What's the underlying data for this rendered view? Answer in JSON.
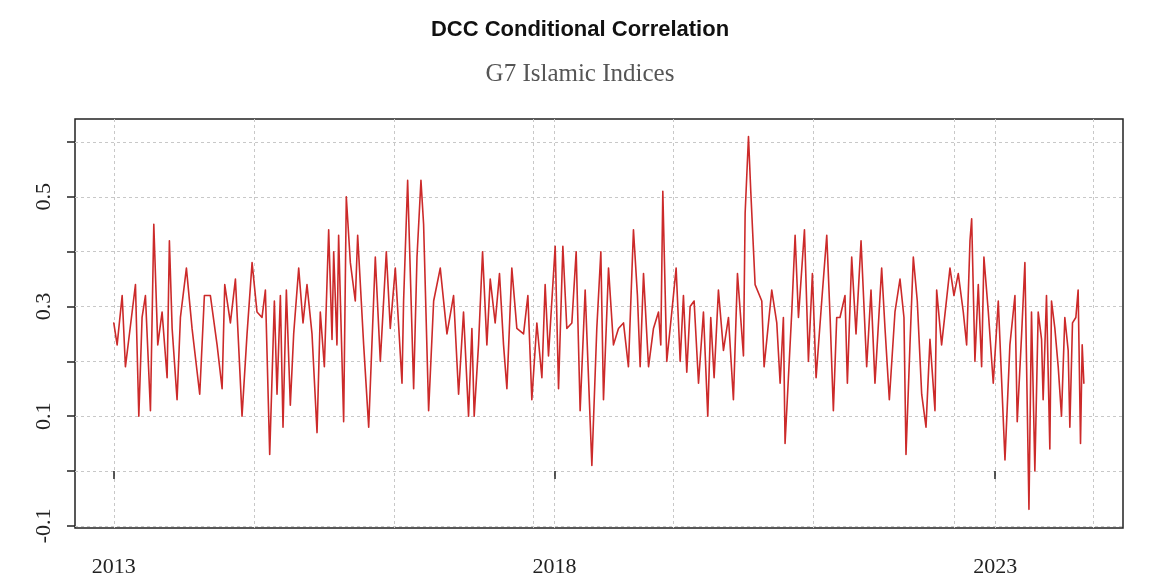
{
  "chart_data": {
    "type": "line",
    "title": "DCC Conditional Correlation",
    "subtitle": "G7 Islamic Indices",
    "x": [
      2013.0,
      2013.038,
      2013.095,
      2013.132,
      2013.208,
      2013.246,
      2013.284,
      2013.321,
      2013.359,
      2013.416,
      2013.454,
      2013.499,
      2013.548,
      2013.605,
      2013.631,
      2013.662,
      2013.718,
      2013.756,
      2013.824,
      2013.888,
      2013.975,
      2014.028,
      2014.096,
      2014.172,
      2014.229,
      2014.259,
      2014.323,
      2014.38,
      2014.455,
      2014.512,
      2014.569,
      2014.625,
      2014.682,
      2014.72,
      2014.769,
      2014.822,
      2014.852,
      2014.89,
      2014.92,
      2014.958,
      2015.003,
      2015.041,
      2015.098,
      2015.147,
      2015.192,
      2015.249,
      2015.306,
      2015.343,
      2015.389,
      2015.438,
      2015.476,
      2015.495,
      2015.532,
      2015.551,
      2015.608,
      2015.638,
      2015.684,
      2015.74,
      2015.767,
      2015.835,
      2015.892,
      2015.967,
      2016.024,
      2016.092,
      2016.137,
      2016.194,
      2016.27,
      2016.288,
      2016.334,
      2016.402,
      2016.44,
      2016.485,
      2016.515,
      2016.572,
      2016.629,
      2016.704,
      2016.78,
      2016.855,
      2016.912,
      2016.968,
      2017.025,
      2017.063,
      2017.089,
      2017.138,
      2017.184,
      2017.233,
      2017.271,
      2017.327,
      2017.376,
      2017.422,
      2017.46,
      2017.516,
      2017.573,
      2017.649,
      2017.698,
      2017.743,
      2017.8,
      2017.857,
      2017.894,
      2017.932,
      2018.008,
      2018.046,
      2018.095,
      2018.14,
      2018.197,
      2018.246,
      2018.291,
      2018.348,
      2018.405,
      2018.424,
      2018.48,
      2018.526,
      2018.556,
      2018.613,
      2018.669,
      2018.726,
      2018.783,
      2018.839,
      2018.896,
      2018.941,
      2018.972,
      2019.01,
      2019.067,
      2019.123,
      2019.18,
      2019.206,
      2019.229,
      2019.274,
      2019.331,
      2019.38,
      2019.426,
      2019.463,
      2019.501,
      2019.539,
      2019.584,
      2019.634,
      2019.69,
      2019.739,
      2019.773,
      2019.811,
      2019.86,
      2019.917,
      2019.974,
      2020.03,
      2020.076,
      2020.144,
      2020.163,
      2020.201,
      2020.227,
      2020.276,
      2020.352,
      2020.378,
      2020.465,
      2020.522,
      2020.56,
      2020.597,
      2020.616,
      2020.654,
      2020.692,
      2020.73,
      2020.768,
      2020.836,
      2020.881,
      2020.926,
      2020.968,
      2021.032,
      2021.089,
      2021.127,
      2021.164,
      2021.202,
      2021.239,
      2021.296,
      2021.323,
      2021.372,
      2021.421,
      2021.478,
      2021.542,
      2021.591,
      2021.636,
      2021.712,
      2021.75,
      2021.799,
      2021.863,
      2021.92,
      2021.965,
      2021.988,
      2022.033,
      2022.071,
      2022.116,
      2022.166,
      2022.215,
      2022.26,
      2022.317,
      2022.336,
      2022.392,
      2022.487,
      2022.532,
      2022.581,
      2022.638,
      2022.676,
      2022.714,
      2022.733,
      2022.77,
      2022.808,
      2022.846,
      2022.872,
      2022.922,
      2022.978,
      2023.035,
      2023.111,
      2023.167,
      2023.224,
      2023.25,
      2023.3,
      2023.337,
      2023.383,
      2023.412,
      2023.45,
      2023.488,
      2023.526,
      2023.544,
      2023.582,
      2023.62,
      2023.639,
      2023.677,
      2023.715,
      2023.752,
      2023.79,
      2023.828,
      2023.847,
      2023.877,
      2023.915,
      2023.941,
      2023.968,
      2023.987,
      2024.006
    ],
    "series": [
      {
        "color": "#cc2a2a",
        "values": [
          0.27,
          0.23,
          0.32,
          0.19,
          0.29,
          0.34,
          0.1,
          0.28,
          0.32,
          0.11,
          0.45,
          0.23,
          0.29,
          0.17,
          0.42,
          0.26,
          0.13,
          0.28,
          0.37,
          0.26,
          0.14,
          0.32,
          0.32,
          0.23,
          0.15,
          0.34,
          0.27,
          0.35,
          0.1,
          0.25,
          0.38,
          0.29,
          0.28,
          0.33,
          0.03,
          0.31,
          0.14,
          0.32,
          0.08,
          0.33,
          0.12,
          0.25,
          0.37,
          0.27,
          0.34,
          0.25,
          0.07,
          0.29,
          0.19,
          0.44,
          0.24,
          0.4,
          0.23,
          0.43,
          0.09,
          0.5,
          0.38,
          0.31,
          0.43,
          0.23,
          0.08,
          0.39,
          0.2,
          0.4,
          0.26,
          0.37,
          0.16,
          0.31,
          0.53,
          0.15,
          0.39,
          0.53,
          0.45,
          0.11,
          0.31,
          0.37,
          0.25,
          0.32,
          0.14,
          0.29,
          0.1,
          0.26,
          0.1,
          0.23,
          0.4,
          0.23,
          0.35,
          0.27,
          0.36,
          0.23,
          0.15,
          0.37,
          0.26,
          0.25,
          0.32,
          0.13,
          0.27,
          0.17,
          0.34,
          0.21,
          0.41,
          0.15,
          0.41,
          0.26,
          0.27,
          0.4,
          0.11,
          0.33,
          0.09,
          0.01,
          0.26,
          0.4,
          0.13,
          0.37,
          0.23,
          0.26,
          0.27,
          0.19,
          0.44,
          0.32,
          0.19,
          0.36,
          0.19,
          0.26,
          0.29,
          0.23,
          0.51,
          0.2,
          0.29,
          0.37,
          0.2,
          0.32,
          0.18,
          0.3,
          0.31,
          0.16,
          0.29,
          0.1,
          0.28,
          0.17,
          0.33,
          0.22,
          0.28,
          0.13,
          0.36,
          0.21,
          0.47,
          0.61,
          0.51,
          0.34,
          0.31,
          0.19,
          0.33,
          0.27,
          0.16,
          0.28,
          0.05,
          0.17,
          0.29,
          0.43,
          0.28,
          0.44,
          0.2,
          0.36,
          0.17,
          0.31,
          0.43,
          0.28,
          0.11,
          0.28,
          0.28,
          0.32,
          0.16,
          0.39,
          0.25,
          0.42,
          0.19,
          0.33,
          0.16,
          0.37,
          0.26,
          0.13,
          0.29,
          0.35,
          0.28,
          0.03,
          0.23,
          0.39,
          0.31,
          0.14,
          0.08,
          0.24,
          0.11,
          0.33,
          0.23,
          0.37,
          0.32,
          0.36,
          0.29,
          0.23,
          0.42,
          0.46,
          0.2,
          0.34,
          0.19,
          0.39,
          0.29,
          0.16,
          0.31,
          0.02,
          0.23,
          0.32,
          0.09,
          0.25,
          0.38,
          -0.07,
          0.29,
          0.0,
          0.29,
          0.24,
          0.13,
          0.32,
          0.04,
          0.31,
          0.26,
          0.19,
          0.1,
          0.28,
          0.22,
          0.08,
          0.27,
          0.28,
          0.33,
          0.05,
          0.23,
          0.16
        ]
      }
    ],
    "xlim": [
      2012.56,
      2024.45
    ],
    "ylim": [
      -0.104,
      0.642
    ],
    "xticks": [
      2013,
      {
        "value": 2014.59,
        "label": null
      },
      {
        "value": 2016.18,
        "label": null
      },
      {
        "value": 2017.76,
        "label": null
      },
      2018,
      {
        "value": 2019.35,
        "label": null
      },
      {
        "value": 2020.94,
        "label": null
      },
      {
        "value": 2022.53,
        "label": null
      },
      2023,
      {
        "value": 2024.11,
        "label": null
      }
    ],
    "yticks": [
      -0.1,
      {
        "value": 0,
        "label": null
      },
      0.1,
      {
        "value": 0.2,
        "label": null
      },
      0.3,
      {
        "value": 0.4,
        "label": null
      },
      0.5,
      {
        "value": 0.6,
        "label": null
      }
    ],
    "grid": true
  }
}
